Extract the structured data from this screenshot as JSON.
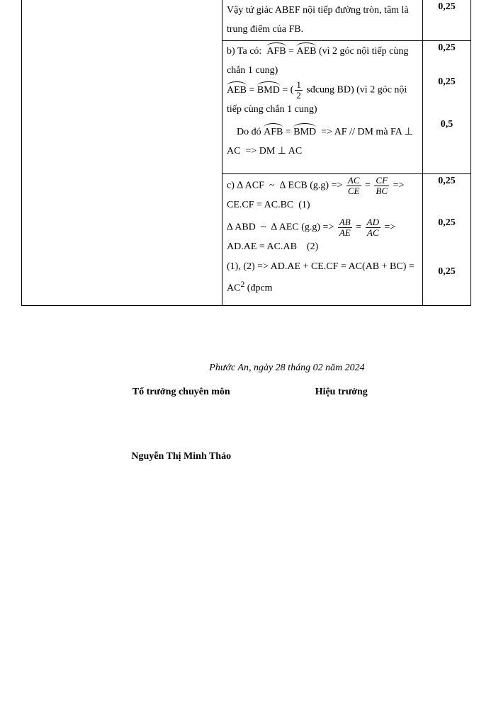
{
  "table": {
    "rows": [
      {
        "content_html": "Vậy tứ giác ABEF nội tiếp đường tròn, tâm là trung điểm của FB.",
        "score": "0,25",
        "score_rows": 1
      },
      {
        "content_html": "b) Ta có:&nbsp; <span class=\"ang\">AFB</span> = <span class=\"ang\">AEB</span>&nbsp;(vì 2 góc nội tiếp cùng chắn 1 cung)",
        "score": "0,25",
        "score_rows": 1
      },
      {
        "content_html": "<span class=\"ang\">AEB</span> = <span class=\"ang\">BMD</span> = (<span class=\"frac\"><span class=\"num\">1</span><span class=\"den\">2</span></span> sđcung BD) (vì 2 góc nội tiếp cùng chắn 1 cung)",
        "score": "0,25",
        "score_rows": 1
      },
      {
        "content_html": "&nbsp;&nbsp;&nbsp;&nbsp;Do đó <span class=\"ang\">AFB</span> = <span class=\"ang\">BMD</span>&nbsp; =&gt; AF // DM mà FA ⊥ AC&nbsp; =&gt; DM ⊥ AC",
        "score": "0,5",
        "score_rows": 1,
        "extra_padding": true
      },
      {
        "content_html": "c) ∆ ACF &nbsp;~&nbsp; ∆ ECB (g.g) =&gt; <span class=\"frac it\"><span class=\"num\">AC</span><span class=\"den\">CE</span></span> = <span class=\"frac it\"><span class=\"num\">CF</span><span class=\"den\">BC</span></span> =&gt; CE.CF = AC.BC&nbsp;&nbsp;(1)",
        "score": "0,25",
        "score_rows": 1
      },
      {
        "content_html": "∆ ABD &nbsp;~&nbsp; ∆ AEC (g.g) =&gt; <span class=\"frac it\"><span class=\"num\">AB</span><span class=\"den\">AE</span></span> = <span class=\"frac it\"><span class=\"num\">AD</span><span class=\"den\">AC</span></span> =&gt; AD.AE = AC.AB&nbsp;&nbsp;&nbsp;&nbsp;(2)",
        "score": "0,25",
        "score_rows": 1
      },
      {
        "content_html": "(1), (2) =&gt; AD.AE + CE.CF = AC(AB + BC) = AC<sup>2</sup> (đpcm",
        "score": "0,25",
        "score_rows": 1
      }
    ]
  },
  "sign": {
    "date": "Phước An, ngày 28  tháng 02 năm 2024",
    "role_left": "Tổ trưởng chuyên môn",
    "role_right": "Hiệu trưởng",
    "name_left": "Nguyễn Thị Minh Thảo"
  }
}
